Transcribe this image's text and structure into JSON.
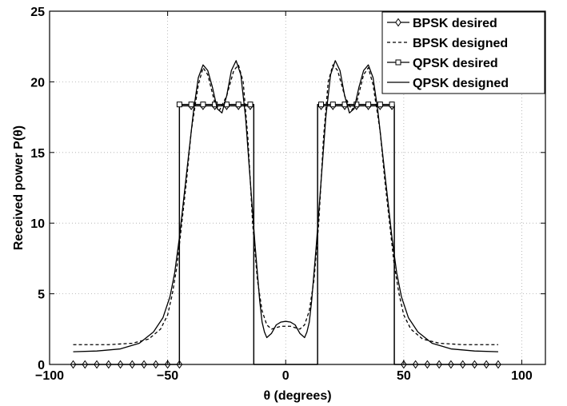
{
  "chart_data": {
    "type": "line",
    "xlabel": "θ (degrees)",
    "ylabel": "Received power  P(θ)",
    "xlim": [
      -100,
      110
    ],
    "ylim": [
      0,
      25
    ],
    "xticks": [
      -100,
      -50,
      0,
      50,
      100
    ],
    "yticks": [
      0,
      5,
      10,
      15,
      20,
      25
    ],
    "xtick_labels": [
      "−100",
      "−50",
      "0",
      "50",
      "100"
    ],
    "ytick_labels": [
      "0",
      "5",
      "10",
      "15",
      "20",
      "25"
    ],
    "grid": true,
    "legend_position": "top-right",
    "series": [
      {
        "name": "BPSK desired",
        "style": "solid",
        "marker": "diamond",
        "color": "#000000",
        "x": [
          -90,
          -45,
          -45,
          -13.5,
          -13.5,
          13.5,
          13.5,
          46,
          46,
          90
        ],
        "y": [
          0,
          0,
          18.3,
          18.3,
          0,
          0,
          18.3,
          18.3,
          0,
          0
        ],
        "marker_x": [
          -90,
          -85,
          -80,
          -75,
          -70,
          -65,
          -60,
          -55,
          -50,
          -45,
          -40,
          -35,
          -30,
          -25,
          -20,
          -15,
          15,
          20,
          25,
          30,
          35,
          40,
          45,
          50,
          55,
          60,
          65,
          70,
          75,
          80,
          85,
          90
        ],
        "marker_y": [
          0,
          0,
          0,
          0,
          0,
          0,
          0,
          0,
          0,
          0,
          18.3,
          18.3,
          18.3,
          18.3,
          18.3,
          18.3,
          18.3,
          18.3,
          18.3,
          18.3,
          18.3,
          18.3,
          18.3,
          0,
          0,
          0,
          0,
          0,
          0,
          0,
          0,
          0
        ]
      },
      {
        "name": "BPSK designed",
        "style": "dashed",
        "color": "#000000",
        "x": [
          -90,
          -75,
          -65,
          -58,
          -53,
          -50,
          -48,
          -46,
          -44,
          -42,
          -40,
          -37,
          -35,
          -33,
          -30,
          -28,
          -25,
          -22,
          -20,
          -18,
          -16,
          -14,
          -12,
          -10,
          -8,
          -6,
          -4,
          -2,
          0,
          2,
          4,
          6,
          8,
          10,
          12,
          14,
          16,
          18,
          20,
          22,
          25,
          28,
          30,
          33,
          35,
          37,
          40,
          42,
          44,
          46,
          48,
          50,
          53,
          58,
          65,
          75,
          90
        ],
        "y": [
          1.4,
          1.4,
          1.5,
          1.8,
          2.5,
          3.5,
          5.0,
          7.0,
          10.0,
          13.0,
          16.5,
          19.8,
          21.0,
          20.5,
          18.5,
          18.0,
          19.0,
          20.8,
          21.2,
          20.0,
          16.0,
          10.0,
          6.0,
          3.8,
          2.8,
          2.5,
          2.6,
          2.7,
          2.7,
          2.7,
          2.6,
          2.5,
          2.8,
          3.8,
          6.0,
          10.0,
          16.0,
          20.0,
          21.2,
          20.8,
          19.0,
          18.0,
          18.5,
          20.5,
          21.0,
          19.8,
          16.5,
          13.0,
          10.0,
          7.0,
          5.0,
          3.5,
          2.5,
          1.8,
          1.5,
          1.4,
          1.4
        ]
      },
      {
        "name": "QPSK desired",
        "style": "solid",
        "marker": "square",
        "color": "#000000",
        "x": [
          -90,
          -45,
          -45,
          -13.5,
          -13.5,
          13.5,
          13.5,
          46,
          46,
          90
        ],
        "y": [
          0,
          0,
          18.4,
          18.4,
          0,
          0,
          18.4,
          18.4,
          0,
          0
        ],
        "marker_x": [
          -45,
          -40,
          -35,
          -30,
          -25,
          -20,
          -15,
          15,
          20,
          25,
          30,
          35,
          40,
          45
        ],
        "marker_y": [
          18.4,
          18.4,
          18.4,
          18.4,
          18.4,
          18.4,
          18.4,
          18.4,
          18.4,
          18.4,
          18.4,
          18.4,
          18.4,
          18.4
        ]
      },
      {
        "name": "QPSK designed",
        "style": "solid",
        "color": "#000000",
        "x": [
          -90,
          -80,
          -70,
          -62,
          -56,
          -52,
          -49,
          -47,
          -45,
          -43,
          -41,
          -39,
          -37,
          -35,
          -33,
          -31,
          -29,
          -27,
          -25,
          -23,
          -21,
          -19,
          -17,
          -15,
          -13,
          -11,
          -10,
          -9,
          -8,
          -6,
          -4,
          -2,
          0,
          2,
          4,
          6,
          8,
          9,
          10,
          11,
          13,
          15,
          17,
          19,
          21,
          23,
          25,
          27,
          29,
          31,
          33,
          35,
          37,
          39,
          41,
          43,
          45,
          47,
          49,
          52,
          56,
          62,
          70,
          80,
          90
        ],
        "y": [
          0.9,
          0.95,
          1.1,
          1.5,
          2.3,
          3.3,
          4.8,
          6.5,
          9.0,
          12.0,
          15.0,
          18.0,
          20.3,
          21.2,
          20.8,
          19.6,
          18.1,
          17.8,
          19.0,
          20.8,
          21.5,
          20.5,
          17.5,
          13.0,
          8.5,
          4.5,
          3.0,
          2.3,
          1.9,
          2.2,
          2.8,
          3.0,
          3.05,
          3.0,
          2.8,
          2.2,
          1.9,
          2.3,
          3.0,
          4.5,
          8.5,
          13.0,
          17.5,
          20.5,
          21.5,
          20.8,
          19.0,
          17.8,
          18.1,
          19.6,
          20.8,
          21.2,
          20.3,
          18.0,
          15.0,
          12.0,
          9.0,
          6.5,
          4.8,
          3.3,
          2.3,
          1.5,
          1.1,
          0.95,
          0.9
        ]
      }
    ]
  }
}
